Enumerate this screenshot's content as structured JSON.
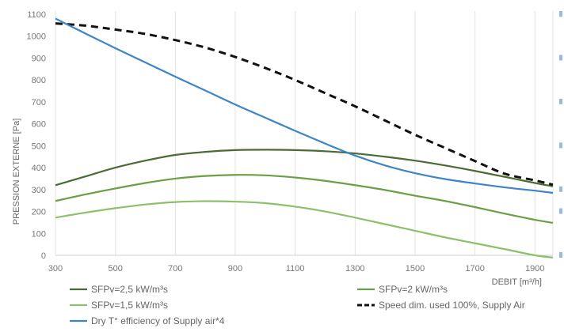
{
  "chart_data": {
    "type": "line",
    "title": "",
    "xlabel": "DEBIT [m³/h]",
    "ylabel": "PRESSION EXTERNE [Pa]",
    "xlim": [
      300,
      1960
    ],
    "ylim": [
      0,
      1100
    ],
    "x_ticks": [
      "300",
      "500",
      "700",
      "900",
      "1100",
      "1300",
      "1500",
      "1700",
      "1900"
    ],
    "y_ticks": [
      "0",
      "100",
      "200",
      "300",
      "400",
      "500",
      "600",
      "700",
      "800",
      "900",
      "1000",
      "1100"
    ],
    "grid": "vertical",
    "legend_position": "bottom",
    "series": [
      {
        "name": "SFPv=2,5 kW/m³s",
        "color": "#4a6b34",
        "style": "solid",
        "x": [
          300,
          400,
          500,
          600,
          700,
          800,
          900,
          1000,
          1100,
          1200,
          1300,
          1400,
          1500,
          1600,
          1700,
          1800,
          1900,
          1960
        ],
        "y": [
          320,
          360,
          400,
          432,
          458,
          472,
          480,
          482,
          480,
          475,
          465,
          450,
          432,
          410,
          385,
          358,
          330,
          315
        ]
      },
      {
        "name": "SFPv=2 kW/m³s",
        "color": "#6aa045",
        "style": "solid",
        "x": [
          300,
          400,
          500,
          600,
          700,
          800,
          900,
          1000,
          1100,
          1200,
          1300,
          1400,
          1500,
          1600,
          1700,
          1800,
          1900,
          1960
        ],
        "y": [
          248,
          278,
          305,
          330,
          350,
          362,
          367,
          365,
          355,
          340,
          320,
          298,
          272,
          248,
          220,
          190,
          162,
          148
        ]
      },
      {
        "name": "SFPv=1,5 kW/m³s",
        "color": "#8cc06a",
        "style": "solid",
        "x": [
          300,
          400,
          500,
          600,
          700,
          800,
          900,
          1000,
          1100,
          1200,
          1300,
          1400,
          1500,
          1600,
          1700,
          1800,
          1900,
          1960
        ],
        "y": [
          172,
          195,
          215,
          232,
          243,
          247,
          245,
          238,
          222,
          200,
          172,
          142,
          112,
          82,
          55,
          28,
          0,
          -10
        ]
      },
      {
        "name": "Speed dim. used 100%, Supply Air",
        "color": "#111111",
        "style": "dashed",
        "x": [
          300,
          400,
          500,
          600,
          700,
          800,
          900,
          1000,
          1100,
          1200,
          1300,
          1400,
          1500,
          1600,
          1700,
          1800,
          1900,
          1960
        ],
        "y": [
          1058,
          1048,
          1030,
          1010,
          982,
          948,
          905,
          855,
          800,
          740,
          680,
          615,
          550,
          490,
          430,
          372,
          342,
          322
        ]
      },
      {
        "name": "Dry T° efficiency of Supply air*4",
        "color": "#3d85c6",
        "style": "solid",
        "x": [
          300,
          400,
          500,
          600,
          700,
          800,
          900,
          1000,
          1100,
          1200,
          1300,
          1400,
          1500,
          1600,
          1700,
          1800,
          1900,
          1960
        ],
        "y": [
          1080,
          1012,
          945,
          880,
          815,
          752,
          688,
          628,
          568,
          510,
          455,
          410,
          375,
          348,
          328,
          310,
          295,
          285
        ]
      }
    ]
  }
}
